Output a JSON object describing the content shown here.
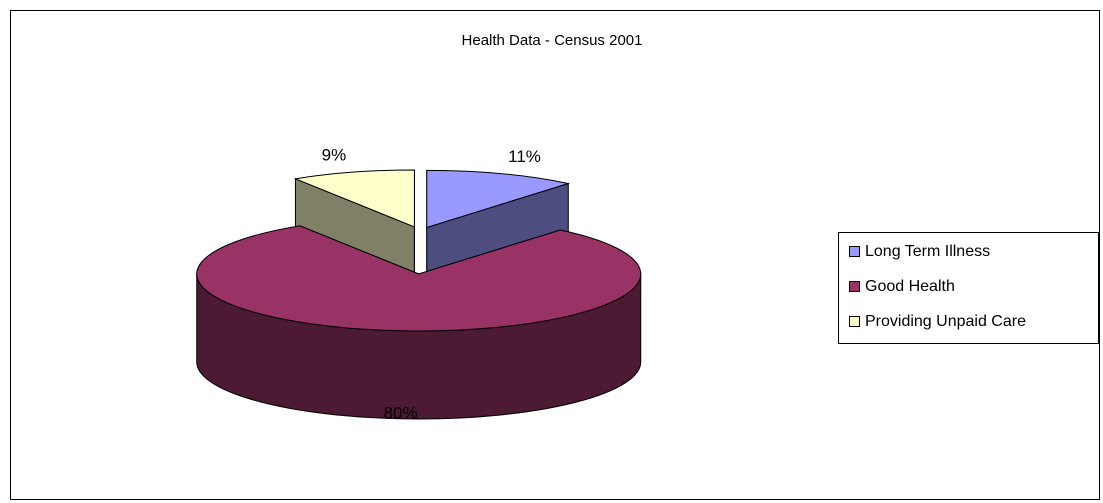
{
  "chart_data": {
    "type": "pie",
    "title": "Health Data - Census 2001",
    "categories": [
      "Long Term Illness",
      "Good Health",
      "Providing Unpaid Care"
    ],
    "values": [
      11,
      80,
      9
    ],
    "value_labels": [
      "11%",
      "80%",
      "9%"
    ],
    "colors": [
      "#9999ff",
      "#993366",
      "#ffffcc"
    ],
    "legend": "right"
  }
}
